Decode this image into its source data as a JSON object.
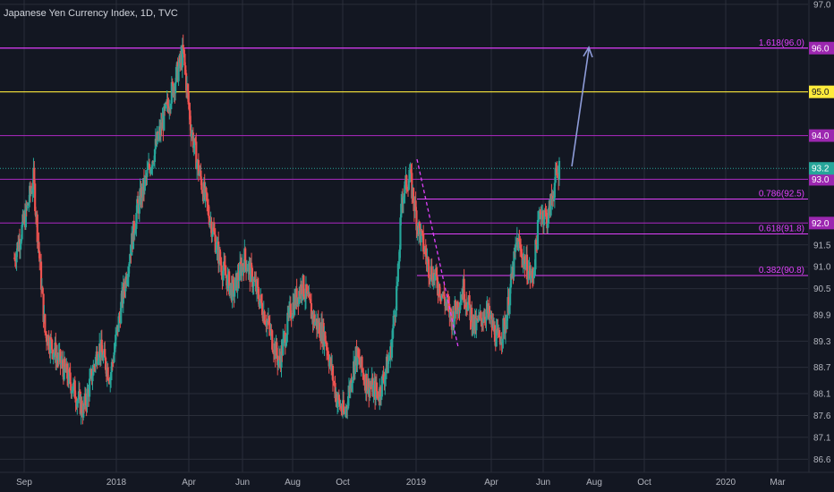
{
  "chart_data": {
    "type": "candlestick",
    "title": "Japanese Yen Currency Index, 1D, TVC",
    "colors": {
      "background": "#131722",
      "grid": "#2a2e39",
      "up": "#26a69a",
      "down": "#ef5350",
      "level": "#9c27b0",
      "level_95": "#ffeb3b",
      "fib": "#e040fb",
      "current": "#26a69a",
      "arrow": "#8e9cd9"
    },
    "ylim": [
      86.3,
      97.1
    ],
    "y_ticks": [
      "97.0",
      "96.0",
      "95.0",
      "94.0",
      "93.2",
      "93.0",
      "92.0",
      "91.5",
      "91.0",
      "90.5",
      "89.9",
      "89.3",
      "88.7",
      "88.1",
      "87.6",
      "87.1",
      "86.6"
    ],
    "x_ticks": [
      "Sep",
      "2018",
      "Apr",
      "Jun",
      "Aug",
      "Oct",
      "2019",
      "Apr",
      "Jun",
      "Aug",
      "Oct",
      "2020",
      "Mar"
    ],
    "price_levels": [
      {
        "label": "96.0",
        "value": 96.0,
        "color": "#9c27b0"
      },
      {
        "label": "95.0",
        "value": 95.0,
        "color": "#ffeb3b"
      },
      {
        "label": "94.0",
        "value": 94.0,
        "color": "#9c27b0"
      },
      {
        "label": "93.0",
        "value": 93.0,
        "color": "#9c27b0"
      },
      {
        "label": "92.0",
        "value": 92.0,
        "color": "#9c27b0"
      }
    ],
    "current_price": {
      "label": "93.2",
      "value": 93.25
    },
    "fib_levels": [
      {
        "label": "1.618(96.0)",
        "value": 96.0
      },
      {
        "label": "0.786(92.5)",
        "value": 92.55
      },
      {
        "label": "0.618(91.8)",
        "value": 91.75
      },
      {
        "label": "0.382(90.8)",
        "value": 90.8
      }
    ],
    "anchors": [
      [
        0,
        91.2
      ],
      [
        3,
        92.2
      ],
      [
        5,
        93.0
      ],
      [
        8,
        89.5
      ],
      [
        12,
        88.8
      ],
      [
        15,
        88.3
      ],
      [
        18,
        87.7
      ],
      [
        22,
        89.2
      ],
      [
        25,
        88.5
      ],
      [
        28,
        90.2
      ],
      [
        32,
        92.3
      ],
      [
        36,
        93.5
      ],
      [
        39,
        94.4
      ],
      [
        42,
        95.3
      ],
      [
        44,
        95.9
      ],
      [
        46,
        94.2
      ],
      [
        48,
        93.2
      ],
      [
        51,
        92.1
      ],
      [
        54,
        91.0
      ],
      [
        57,
        90.4
      ],
      [
        60,
        91.2
      ],
      [
        63,
        90.5
      ],
      [
        66,
        89.7
      ],
      [
        69,
        88.8
      ],
      [
        72,
        90.0
      ],
      [
        75,
        90.6
      ],
      [
        78,
        89.8
      ],
      [
        81,
        89.4
      ],
      [
        84,
        88.0
      ],
      [
        86,
        87.6
      ],
      [
        89,
        89.0
      ],
      [
        92,
        88.3
      ],
      [
        95,
        88.1
      ],
      [
        98,
        89.0
      ],
      [
        100,
        90.8
      ],
      [
        101,
        92.6
      ],
      [
        103,
        93.1
      ],
      [
        105,
        92.0
      ],
      [
        108,
        91.0
      ],
      [
        111,
        90.5
      ],
      [
        114,
        89.8
      ],
      [
        117,
        90.5
      ],
      [
        120,
        89.6
      ],
      [
        123,
        90.0
      ],
      [
        126,
        89.3
      ],
      [
        128,
        89.7
      ],
      [
        131,
        91.6
      ],
      [
        133,
        91.1
      ],
      [
        135,
        90.7
      ],
      [
        137,
        92.3
      ],
      [
        139,
        92.1
      ],
      [
        141,
        93.0
      ],
      [
        142,
        93.25
      ]
    ]
  }
}
